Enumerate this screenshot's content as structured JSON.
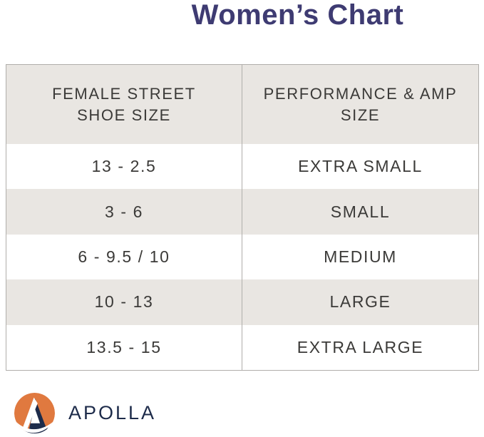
{
  "title": "Women’s Chart",
  "table": {
    "columns": [
      {
        "label": "FEMALE STREET SHOE SIZE",
        "lines": "FEMALE STREET\nSHOE SIZE"
      },
      {
        "label": "PERFORMANCE & AMP SIZE",
        "lines": "PERFORMANCE & AMP\nSIZE"
      }
    ],
    "rows": [
      {
        "shoe_size": "13 - 2.5",
        "amp_size": "EXTRA SMALL"
      },
      {
        "shoe_size": "3 - 6",
        "amp_size": "SMALL"
      },
      {
        "shoe_size": "6 - 9.5 / 10",
        "amp_size": "MEDIUM"
      },
      {
        "shoe_size": "10 - 13",
        "amp_size": "LARGE"
      },
      {
        "shoe_size": "13.5 - 15",
        "amp_size": "EXTRA LARGE"
      }
    ]
  },
  "brand": {
    "name": "APOLLA",
    "logo_icon": "apolla-logo-icon"
  },
  "colors": {
    "title": "#3E3B72",
    "table_text": "#3B3A38",
    "row_shaded": "#E9E6E2",
    "row_plain": "#FFFFFF",
    "border": "#B0AEAB",
    "logo_orange": "#E0793F",
    "logo_navy": "#1D2B4A"
  },
  "chart_data": {
    "type": "table",
    "title": "Women’s Chart",
    "columns": [
      "FEMALE STREET SHOE SIZE",
      "PERFORMANCE & AMP SIZE"
    ],
    "rows": [
      [
        "13 - 2.5",
        "EXTRA SMALL"
      ],
      [
        "3 - 6",
        "SMALL"
      ],
      [
        "6 - 9.5 / 10",
        "MEDIUM"
      ],
      [
        "10 - 13",
        "LARGE"
      ],
      [
        "13.5 - 15",
        "EXTRA LARGE"
      ]
    ],
    "layout": {
      "header_shaded": true,
      "alternating_rows": true,
      "grid": "outer-border + column divider"
    }
  }
}
